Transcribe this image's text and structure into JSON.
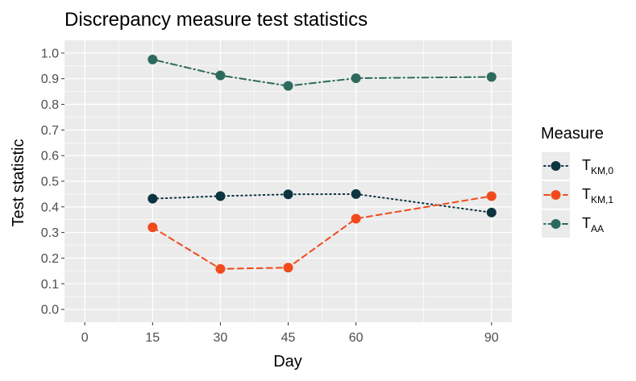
{
  "chart_data": {
    "type": "line",
    "title": "Discrepancy measure test statistics",
    "xlabel": "Day",
    "ylabel": "Test statistic",
    "x_ticks": [
      0,
      15,
      30,
      45,
      60,
      90
    ],
    "y_ticks": [
      "0.0",
      "0.1",
      "0.2",
      "0.3",
      "0.4",
      "0.5",
      "0.6",
      "0.7",
      "0.8",
      "0.9",
      "1.0"
    ],
    "xlim": [
      -4.5,
      94.5
    ],
    "ylim": [
      -0.05,
      1.05
    ],
    "grid": true,
    "legend_placement": "right",
    "legend_title": "Measure",
    "series": [
      {
        "name": "T_KM,0",
        "label_main": "T",
        "label_sub": "KM,0",
        "color": "#0d3340",
        "line_style": "dotted",
        "x": [
          15,
          30,
          45,
          60,
          90
        ],
        "values": [
          0.432,
          0.442,
          0.449,
          0.45,
          0.378
        ]
      },
      {
        "name": "T_KM,1",
        "label_main": "T",
        "label_sub": "KM,1",
        "color": "#f24a1c",
        "line_style": "dashed",
        "x": [
          15,
          30,
          45,
          60,
          90
        ],
        "values": [
          0.32,
          0.158,
          0.163,
          0.354,
          0.442
        ]
      },
      {
        "name": "T_AA",
        "label_main": "T",
        "label_sub": "AA",
        "color": "#2d6a5e",
        "line_style": "dotdash",
        "x": [
          15,
          30,
          45,
          60,
          90
        ],
        "values": [
          0.975,
          0.913,
          0.872,
          0.902,
          0.907
        ]
      }
    ]
  }
}
